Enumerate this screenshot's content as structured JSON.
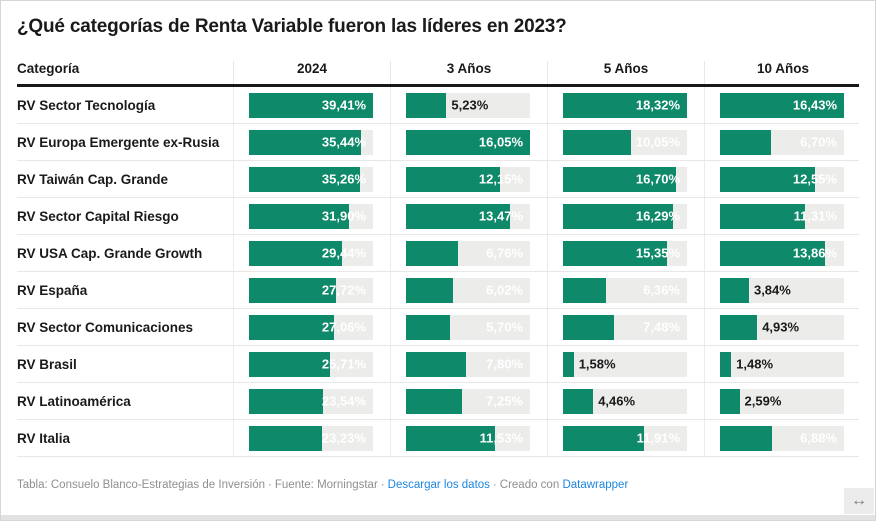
{
  "title": "¿Qué categorías de Renta Variable fueron las líderes en 2023?",
  "table": {
    "category_header": "Categoría"
  },
  "chart_data": {
    "type": "bar",
    "title": "¿Qué categorías de Renta Variable fueron las líderes en 2023?",
    "layout": "table-of-horizontal-bars, one bar column per period, each column scaled to its own max value",
    "scale": "per-column-max",
    "value_suffix": "%",
    "decimal_separator": ",",
    "bar_color": "#0e8a6a",
    "track_color": "#ececea",
    "label_color_inside": "#ffffff",
    "label_color_outside": "#1a1a1a",
    "categories": [
      "RV Sector Tecnología",
      "RV Europa Emergente ex-Rusia",
      "RV Taiwán Cap. Grande",
      "RV Sector Capital Riesgo",
      "RV USA Cap. Grande Growth",
      "RV España",
      "RV Sector Comunicaciones",
      "RV Brasil",
      "RV Latinoamérica",
      "RV Italia"
    ],
    "series": [
      {
        "name": "2024",
        "values": [
          39.41,
          35.44,
          35.26,
          31.9,
          29.44,
          27.72,
          27.06,
          25.71,
          23.54,
          23.23
        ],
        "labels": [
          "39,41%",
          "35,44%",
          "35,26%",
          "31,90%",
          "29,44%",
          "27,72%",
          "27,06%",
          "25,71%",
          "23,54%",
          "23,23%"
        ]
      },
      {
        "name": "3 Años",
        "values": [
          5.23,
          16.05,
          12.15,
          13.47,
          6.76,
          6.02,
          5.7,
          7.8,
          7.25,
          11.53
        ],
        "labels": [
          "5,23%",
          "16,05%",
          "12,15%",
          "13,47%",
          "6,76%",
          "6,02%",
          "5,70%",
          "7,80%",
          "7,25%",
          "11,53%"
        ]
      },
      {
        "name": "5 Años",
        "values": [
          18.32,
          10.05,
          16.7,
          16.29,
          15.35,
          6.36,
          7.48,
          1.58,
          4.46,
          11.91
        ],
        "labels": [
          "18,32%",
          "10,05%",
          "16,70%",
          "16,29%",
          "15,35%",
          "6,36%",
          "7,48%",
          "1,58%",
          "4,46%",
          "11,91%"
        ]
      },
      {
        "name": "10 Años",
        "values": [
          16.43,
          6.7,
          12.55,
          11.31,
          13.86,
          3.84,
          4.93,
          1.48,
          2.59,
          6.88
        ],
        "labels": [
          "16,43%",
          "6,70%",
          "12,55%",
          "11,31%",
          "13,86%",
          "3,84%",
          "4,93%",
          "1,48%",
          "2,59%",
          "6,88%"
        ]
      }
    ]
  },
  "footer": {
    "attribution": "Tabla: Consuelo Blanco-Estrategias de Inversión",
    "source": "Fuente: Morningstar",
    "download_link": "Descargar los datos",
    "created_with": "Creado con",
    "datawrapper_link": "Datawrapper",
    "separator": "·",
    "link_color": "#1d86e0",
    "resize_icon": "↔"
  }
}
